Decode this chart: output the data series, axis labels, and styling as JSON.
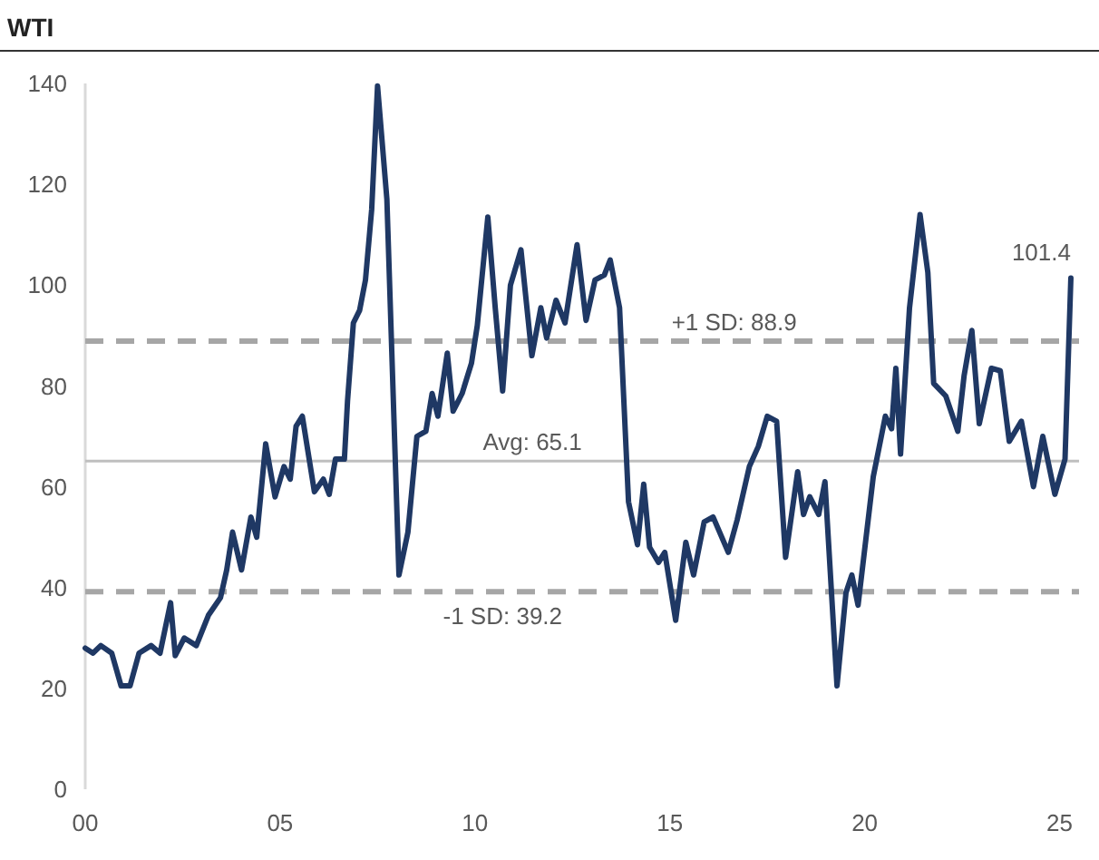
{
  "chart_data": {
    "type": "line",
    "title": "WTI",
    "x": [
      2000,
      2000.2,
      2000.4,
      2000.68,
      2000.92,
      2001.15,
      2001.38,
      2001.69,
      2001.92,
      2002.19,
      2002.31,
      2002.54,
      2002.85,
      2003.16,
      2003.47,
      2003.63,
      2003.78,
      2004.01,
      2004.25,
      2004.4,
      2004.63,
      2004.87,
      2005.1,
      2005.26,
      2005.41,
      2005.57,
      2005.88,
      2006.11,
      2006.26,
      2006.42,
      2006.65,
      2006.73,
      2006.88,
      2007.04,
      2007.19,
      2007.35,
      2007.5,
      2007.74,
      2008.05,
      2008.28,
      2008.51,
      2008.74,
      2008.9,
      2009.05,
      2009.29,
      2009.44,
      2009.67,
      2009.91,
      2010.06,
      2010.33,
      2010.52,
      2010.71,
      2010.91,
      2011.18,
      2011.46,
      2011.69,
      2011.84,
      2012.08,
      2012.31,
      2012.62,
      2012.85,
      2013.08,
      2013.32,
      2013.47,
      2013.71,
      2013.94,
      2014.17,
      2014.33,
      2014.48,
      2014.71,
      2014.87,
      2015.15,
      2015.41,
      2015.61,
      2015.88,
      2016.11,
      2016.5,
      2016.73,
      2017.04,
      2017.27,
      2017.5,
      2017.74,
      2017.97,
      2018.28,
      2018.43,
      2018.59,
      2018.82,
      2018.98,
      2019.29,
      2019.52,
      2019.67,
      2019.83,
      2020.22,
      2020.53,
      2020.69,
      2020.8,
      2020.92,
      2021.15,
      2021.42,
      2021.62,
      2021.77,
      2022.08,
      2022.39,
      2022.55,
      2022.75,
      2022.94,
      2023.25,
      2023.48,
      2023.71,
      2024.02,
      2024.33,
      2024.57,
      2024.88,
      2025.14,
      2025.29
    ],
    "series": [
      {
        "color": "#1f3864",
        "values": [
          28,
          27,
          28.5,
          27,
          20.5,
          20.5,
          27,
          28.5,
          27,
          37,
          26.5,
          30,
          28.5,
          34.5,
          38,
          43.5,
          51,
          43.5,
          54,
          50,
          68.5,
          58,
          64,
          61.5,
          72,
          74,
          59,
          61.5,
          58.5,
          65.5,
          65.5,
          77,
          92.5,
          95,
          101,
          115,
          139.5,
          117,
          42.5,
          51,
          70,
          71,
          78.5,
          74,
          86.5,
          75,
          78.5,
          84.5,
          92,
          113.5,
          95.5,
          79,
          100,
          107,
          86,
          95.5,
          89.5,
          97,
          92.5,
          108,
          93,
          101,
          102,
          105,
          95.5,
          57,
          48.5,
          60.5,
          48,
          45,
          47,
          33.5,
          49,
          42.5,
          53,
          54,
          47,
          53.5,
          64,
          68,
          74,
          73,
          46,
          63,
          54.5,
          58,
          54.5,
          61,
          20.5,
          39,
          42.5,
          36.5,
          62,
          74,
          71.5,
          83.5,
          66.5,
          95.5,
          114,
          102.5,
          80.5,
          78,
          71,
          82,
          91,
          72.5,
          83.5,
          83,
          69,
          73,
          60,
          70,
          58.5,
          65.5,
          101.4
        ]
      }
    ],
    "xlim": [
      2000,
      2025.5
    ],
    "xticks": [
      {
        "value": 2000,
        "label": "00"
      },
      {
        "value": 2005,
        "label": "05"
      },
      {
        "value": 2010,
        "label": "10"
      },
      {
        "value": 2015,
        "label": "15"
      },
      {
        "value": 2020,
        "label": "20"
      },
      {
        "value": 2025,
        "label": "25"
      }
    ],
    "ylim": [
      0,
      140
    ],
    "yticks": [
      0,
      20,
      40,
      60,
      80,
      100,
      120,
      140
    ],
    "marker": "none",
    "line_style": "solid",
    "ref_lines": [
      {
        "axis": "y",
        "value": 88.9,
        "label": "+1 SD: 88.9",
        "color": "#a6a6a6",
        "line_style": "dashed"
      },
      {
        "axis": "y",
        "value": 65.1,
        "label": "Avg: 65.1",
        "color": "#bfbfbf",
        "line_style": "solid"
      },
      {
        "axis": "y",
        "value": 39.2,
        "label": "-1 SD: 39.2",
        "color": "#a6a6a6",
        "line_style": "dashed"
      }
    ],
    "annotations": [
      {
        "text": "101.4",
        "x": 2025.29,
        "y": 101.4
      }
    ]
  }
}
